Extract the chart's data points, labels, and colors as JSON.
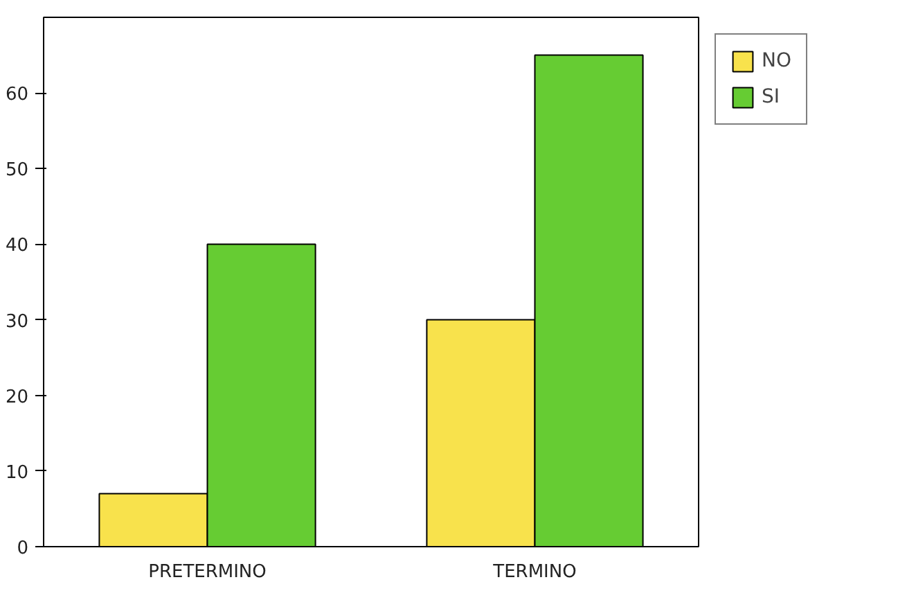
{
  "chart_data": {
    "type": "bar",
    "categories": [
      "PRETERMINO",
      "TERMINO"
    ],
    "series": [
      {
        "name": "NO",
        "color": "#f8e24c",
        "values": [
          7,
          30
        ]
      },
      {
        "name": "SI",
        "color": "#66cc33",
        "values": [
          40,
          65
        ]
      }
    ],
    "ylim": [
      0,
      70
    ],
    "yticks": [
      0,
      10,
      20,
      30,
      40,
      50,
      60
    ],
    "grid": false,
    "legend": "top right"
  }
}
